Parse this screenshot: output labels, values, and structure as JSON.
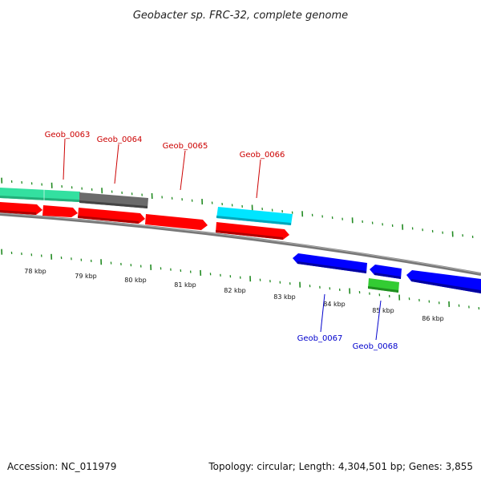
{
  "title": "Geobacter sp. FRC-32, complete genome",
  "footer": {
    "accession": "Accession: NC_011979",
    "summary": "Topology: circular; Length: 4,304,501 bp; Genes: 3,855"
  },
  "colors": {
    "backbone": "#888888",
    "tick": "#228b22",
    "forward_label": "#cc0000",
    "reverse_label": "#0000cc",
    "red_gene": "#ff0000",
    "blue_gene": "#0000ff",
    "teal_gene": "#33e0a0",
    "gray_gene": "#666666",
    "cyan_gene": "#00e5ff",
    "green_gene": "#33cc33"
  },
  "kbp_labels": [
    "78 kbp",
    "79 kbp",
    "80 kbp",
    "81 kbp",
    "82 kbp",
    "83 kbp",
    "84 kbp",
    "85 kbp",
    "86 kbp"
  ],
  "gene_labels": [
    {
      "id": "g63",
      "text": "Geob_0063",
      "strand": "forward"
    },
    {
      "id": "g64",
      "text": "Geob_0064",
      "strand": "forward"
    },
    {
      "id": "g65",
      "text": "Geob_0065",
      "strand": "forward"
    },
    {
      "id": "g66",
      "text": "Geob_0066",
      "strand": "forward"
    },
    {
      "id": "g67",
      "text": "Geob_0067",
      "strand": "reverse"
    },
    {
      "id": "g68",
      "text": "Geob_0068",
      "strand": "reverse"
    }
  ]
}
